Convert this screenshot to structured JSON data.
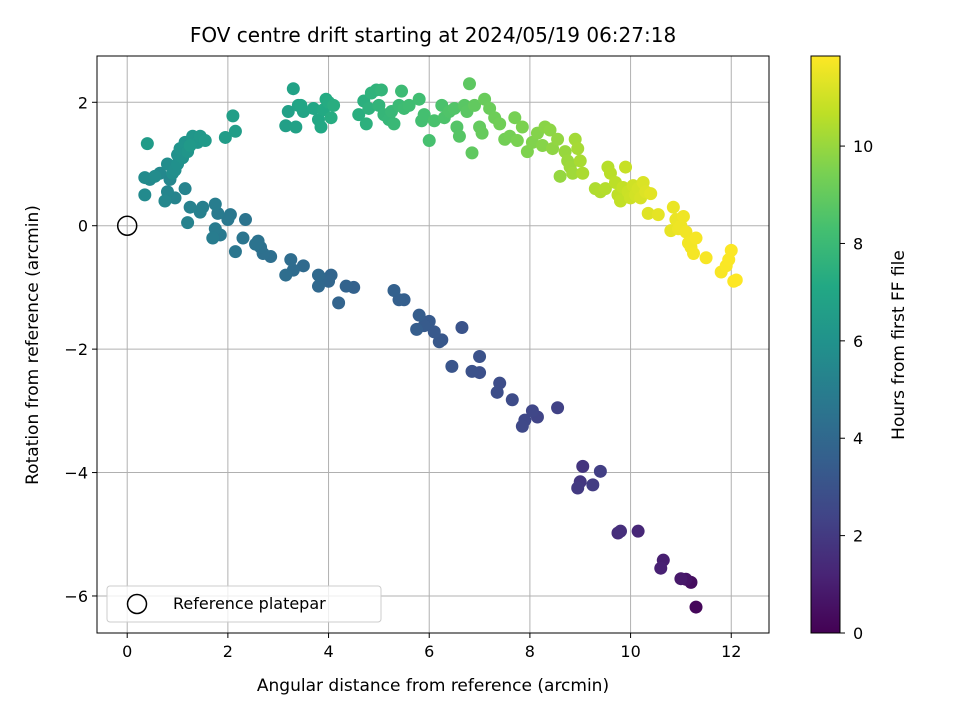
{
  "chart_data": {
    "type": "scatter",
    "title": "FOV centre drift starting at 2024/05/19 06:27:18",
    "xlabel": "Angular distance from reference (arcmin)",
    "ylabel": "Rotation from reference (arcmin)",
    "xlim": [
      -0.6,
      12.75
    ],
    "ylim": [
      -6.6,
      2.75
    ],
    "xticks": [
      0,
      2,
      4,
      6,
      8,
      10,
      12
    ],
    "yticks": [
      -6,
      -4,
      -2,
      0,
      2
    ],
    "grid": true,
    "legend": {
      "placement": "lower-left",
      "entries": [
        "Reference platepar"
      ]
    },
    "reference_point": {
      "x": 0,
      "y": 0,
      "marker": "open-circle"
    },
    "colorbar": {
      "label": "Hours from first FF file",
      "colormap": "viridis",
      "range": [
        0,
        11.85
      ],
      "ticks": [
        0,
        2,
        4,
        6,
        8,
        10
      ]
    },
    "points": [
      [
        11.3,
        -6.18,
        0.2
      ],
      [
        11.2,
        -5.78,
        0.4
      ],
      [
        11.1,
        -5.73,
        0.6
      ],
      [
        11.0,
        -5.72,
        0.8
      ],
      [
        10.65,
        -5.42,
        1.0
      ],
      [
        10.6,
        -5.55,
        1.1
      ],
      [
        10.15,
        -4.95,
        1.3
      ],
      [
        9.75,
        -4.98,
        1.5
      ],
      [
        9.8,
        -4.95,
        1.6
      ],
      [
        9.05,
        -3.9,
        1.8
      ],
      [
        9.0,
        -4.15,
        1.9
      ],
      [
        8.95,
        -4.25,
        2.0
      ],
      [
        9.25,
        -4.2,
        2.1
      ],
      [
        9.4,
        -3.98,
        2.2
      ],
      [
        8.55,
        -2.95,
        2.3
      ],
      [
        8.15,
        -3.1,
        2.4
      ],
      [
        8.05,
        -3.0,
        2.5
      ],
      [
        7.9,
        -3.15,
        2.55
      ],
      [
        7.85,
        -3.25,
        2.6
      ],
      [
        7.65,
        -2.82,
        2.7
      ],
      [
        7.4,
        -2.55,
        2.75
      ],
      [
        7.35,
        -2.7,
        2.8
      ],
      [
        7.0,
        -2.38,
        2.9
      ],
      [
        6.85,
        -2.36,
        2.95
      ],
      [
        7.0,
        -2.12,
        3.0
      ],
      [
        6.65,
        -1.65,
        3.05
      ],
      [
        6.45,
        -2.28,
        3.1
      ],
      [
        6.25,
        -1.85,
        3.2
      ],
      [
        6.2,
        -1.88,
        3.25
      ],
      [
        6.1,
        -1.72,
        3.3
      ],
      [
        6.0,
        -1.55,
        3.35
      ],
      [
        5.9,
        -1.62,
        3.4
      ],
      [
        5.8,
        -1.45,
        3.45
      ],
      [
        5.75,
        -1.68,
        3.5
      ],
      [
        5.5,
        -1.2,
        3.55
      ],
      [
        5.4,
        -1.2,
        3.6
      ],
      [
        5.3,
        -1.05,
        3.65
      ],
      [
        4.5,
        -1.0,
        3.7
      ],
      [
        4.35,
        -0.98,
        3.75
      ],
      [
        4.2,
        -1.25,
        3.8
      ],
      [
        4.05,
        -0.8,
        3.85
      ],
      [
        4.0,
        -0.9,
        3.9
      ],
      [
        3.85,
        -0.85,
        3.95
      ],
      [
        3.8,
        -0.98,
        4.0
      ],
      [
        3.8,
        -0.8,
        4.05
      ],
      [
        3.5,
        -0.65,
        4.1
      ],
      [
        3.3,
        -0.72,
        4.15
      ],
      [
        3.25,
        -0.55,
        4.2
      ],
      [
        3.15,
        -0.8,
        4.25
      ],
      [
        2.85,
        -0.5,
        4.3
      ],
      [
        2.7,
        -0.45,
        4.35
      ],
      [
        2.65,
        -0.35,
        4.4
      ],
      [
        2.6,
        -0.25,
        4.45
      ],
      [
        2.55,
        -0.3,
        4.5
      ],
      [
        2.35,
        0.1,
        4.55
      ],
      [
        2.3,
        -0.2,
        4.6
      ],
      [
        2.15,
        -0.42,
        4.65
      ],
      [
        2.05,
        0.18,
        4.7
      ],
      [
        2.0,
        0.1,
        4.75
      ],
      [
        1.85,
        -0.15,
        4.8
      ],
      [
        1.8,
        0.2,
        4.85
      ],
      [
        1.75,
        -0.05,
        4.9
      ],
      [
        1.7,
        -0.2,
        4.95
      ],
      [
        1.75,
        0.35,
        5.0
      ],
      [
        1.5,
        0.3,
        5.05
      ],
      [
        1.45,
        0.22,
        5.1
      ],
      [
        1.25,
        0.3,
        5.15
      ],
      [
        1.2,
        0.05,
        5.2
      ],
      [
        1.15,
        0.6,
        5.25
      ],
      [
        0.95,
        0.45,
        5.3
      ],
      [
        0.8,
        0.55,
        5.35
      ],
      [
        0.85,
        0.75,
        5.4
      ],
      [
        0.75,
        0.4,
        5.45
      ],
      [
        0.65,
        0.85,
        5.5
      ],
      [
        0.45,
        0.75,
        5.55
      ],
      [
        0.35,
        0.5,
        5.6
      ],
      [
        0.35,
        0.78,
        5.65
      ],
      [
        0.55,
        0.8,
        5.7
      ],
      [
        0.8,
        1.0,
        5.75
      ],
      [
        0.9,
        0.85,
        5.8
      ],
      [
        0.95,
        0.9,
        5.85
      ],
      [
        1.0,
        1.0,
        5.9
      ],
      [
        1.0,
        1.15,
        5.95
      ],
      [
        1.1,
        1.1,
        6.0
      ],
      [
        1.05,
        1.25,
        6.05
      ],
      [
        1.15,
        1.35,
        6.1
      ],
      [
        1.2,
        1.2,
        6.15
      ],
      [
        1.3,
        1.45,
        6.2
      ],
      [
        1.4,
        1.35,
        6.25
      ],
      [
        1.45,
        1.45,
        6.3
      ],
      [
        1.25,
        1.3,
        6.35
      ],
      [
        1.55,
        1.38,
        6.4
      ],
      [
        0.4,
        1.33,
        6.45
      ],
      [
        1.95,
        1.43,
        6.5
      ],
      [
        2.15,
        1.53,
        6.55
      ],
      [
        2.1,
        1.78,
        6.6
      ],
      [
        3.15,
        1.62,
        6.65
      ],
      [
        3.2,
        1.85,
        6.7
      ],
      [
        3.35,
        1.6,
        6.75
      ],
      [
        3.3,
        2.22,
        6.8
      ],
      [
        3.4,
        1.95,
        6.85
      ],
      [
        3.5,
        1.85,
        6.9
      ],
      [
        3.45,
        1.95,
        6.95
      ],
      [
        3.7,
        1.9,
        7.0
      ],
      [
        3.8,
        1.72,
        7.05
      ],
      [
        3.85,
        1.6,
        7.1
      ],
      [
        3.9,
        1.88,
        7.15
      ],
      [
        3.95,
        2.05,
        7.2
      ],
      [
        4.0,
        2.0,
        7.25
      ],
      [
        4.05,
        1.75,
        7.3
      ],
      [
        4.1,
        1.95,
        7.35
      ],
      [
        4.6,
        1.8,
        7.4
      ],
      [
        4.7,
        2.02,
        7.45
      ],
      [
        4.75,
        1.65,
        7.5
      ],
      [
        4.8,
        1.9,
        7.55
      ],
      [
        4.85,
        2.15,
        7.6
      ],
      [
        4.95,
        2.2,
        7.65
      ],
      [
        5.0,
        1.95,
        7.7
      ],
      [
        5.05,
        2.2,
        7.75
      ],
      [
        5.1,
        1.8,
        7.8
      ],
      [
        5.2,
        1.72,
        7.85
      ],
      [
        5.25,
        1.85,
        7.9
      ],
      [
        5.3,
        1.65,
        7.95
      ],
      [
        5.4,
        1.95,
        8.0
      ],
      [
        5.45,
        2.18,
        8.05
      ],
      [
        5.5,
        1.9,
        8.1
      ],
      [
        5.6,
        1.95,
        8.15
      ],
      [
        5.8,
        2.05,
        8.2
      ],
      [
        5.85,
        1.7,
        8.25
      ],
      [
        5.9,
        1.8,
        8.3
      ],
      [
        6.0,
        1.38,
        8.35
      ],
      [
        6.1,
        1.7,
        8.4
      ],
      [
        6.25,
        1.95,
        8.45
      ],
      [
        6.3,
        1.75,
        8.5
      ],
      [
        6.4,
        1.85,
        8.55
      ],
      [
        6.5,
        1.9,
        8.6
      ],
      [
        6.55,
        1.6,
        8.65
      ],
      [
        6.6,
        1.45,
        8.7
      ],
      [
        6.7,
        1.95,
        8.75
      ],
      [
        6.75,
        1.85,
        8.8
      ],
      [
        6.8,
        2.3,
        8.85
      ],
      [
        6.85,
        1.18,
        8.9
      ],
      [
        6.9,
        1.95,
        8.95
      ],
      [
        7.0,
        1.6,
        9.0
      ],
      [
        7.05,
        1.5,
        9.05
      ],
      [
        7.1,
        2.05,
        9.1
      ],
      [
        7.2,
        1.9,
        9.15
      ],
      [
        7.3,
        1.75,
        9.2
      ],
      [
        7.4,
        1.65,
        9.25
      ],
      [
        7.5,
        1.4,
        9.3
      ],
      [
        7.6,
        1.45,
        9.35
      ],
      [
        7.7,
        1.75,
        9.4
      ],
      [
        7.75,
        1.38,
        9.45
      ],
      [
        7.85,
        1.6,
        9.5
      ],
      [
        7.95,
        1.2,
        9.55
      ],
      [
        8.05,
        1.35,
        9.6
      ],
      [
        8.15,
        1.5,
        9.65
      ],
      [
        8.25,
        1.3,
        9.7
      ],
      [
        8.3,
        1.6,
        9.75
      ],
      [
        8.4,
        1.55,
        9.8
      ],
      [
        8.45,
        1.25,
        9.85
      ],
      [
        8.55,
        1.4,
        9.9
      ],
      [
        8.6,
        0.8,
        9.95
      ],
      [
        8.7,
        1.2,
        10.0
      ],
      [
        8.75,
        1.05,
        10.05
      ],
      [
        8.8,
        0.95,
        10.1
      ],
      [
        8.85,
        0.85,
        10.15
      ],
      [
        8.9,
        1.4,
        10.2
      ],
      [
        8.95,
        1.25,
        10.25
      ],
      [
        9.0,
        1.05,
        10.3
      ],
      [
        9.05,
        0.85,
        10.35
      ],
      [
        9.3,
        0.6,
        10.4
      ],
      [
        9.4,
        0.55,
        10.45
      ],
      [
        9.5,
        0.6,
        10.5
      ],
      [
        9.55,
        0.95,
        10.55
      ],
      [
        9.6,
        0.85,
        10.6
      ],
      [
        9.7,
        0.7,
        10.65
      ],
      [
        9.75,
        0.5,
        10.7
      ],
      [
        9.8,
        0.4,
        10.75
      ],
      [
        9.85,
        0.62,
        10.8
      ],
      [
        9.9,
        0.95,
        10.85
      ],
      [
        9.95,
        0.55,
        10.9
      ],
      [
        10.0,
        0.45,
        10.95
      ],
      [
        10.05,
        0.65,
        11.0
      ],
      [
        10.1,
        0.5,
        11.05
      ],
      [
        10.15,
        0.6,
        11.1
      ],
      [
        10.2,
        0.45,
        11.15
      ],
      [
        10.25,
        0.7,
        11.2
      ],
      [
        10.3,
        0.55,
        11.25
      ],
      [
        10.35,
        0.2,
        11.3
      ],
      [
        10.4,
        0.52,
        11.35
      ],
      [
        10.55,
        0.18,
        11.4
      ],
      [
        10.8,
        -0.08,
        11.45
      ],
      [
        10.85,
        0.3,
        11.5
      ],
      [
        10.9,
        0.1,
        11.52
      ],
      [
        10.95,
        -0.05,
        11.55
      ],
      [
        11.0,
        0.0,
        11.58
      ],
      [
        11.05,
        0.15,
        11.6
      ],
      [
        11.1,
        -0.1,
        11.62
      ],
      [
        11.15,
        -0.28,
        11.65
      ],
      [
        11.2,
        -0.35,
        11.67
      ],
      [
        11.25,
        -0.45,
        11.7
      ],
      [
        11.3,
        -0.2,
        11.72
      ],
      [
        11.5,
        -0.52,
        11.74
      ],
      [
        11.8,
        -0.75,
        11.76
      ],
      [
        11.9,
        -0.65,
        11.78
      ],
      [
        11.95,
        -0.55,
        11.8
      ],
      [
        12.0,
        -0.4,
        11.82
      ],
      [
        12.05,
        -0.9,
        11.83
      ],
      [
        12.1,
        -0.88,
        11.85
      ]
    ]
  }
}
